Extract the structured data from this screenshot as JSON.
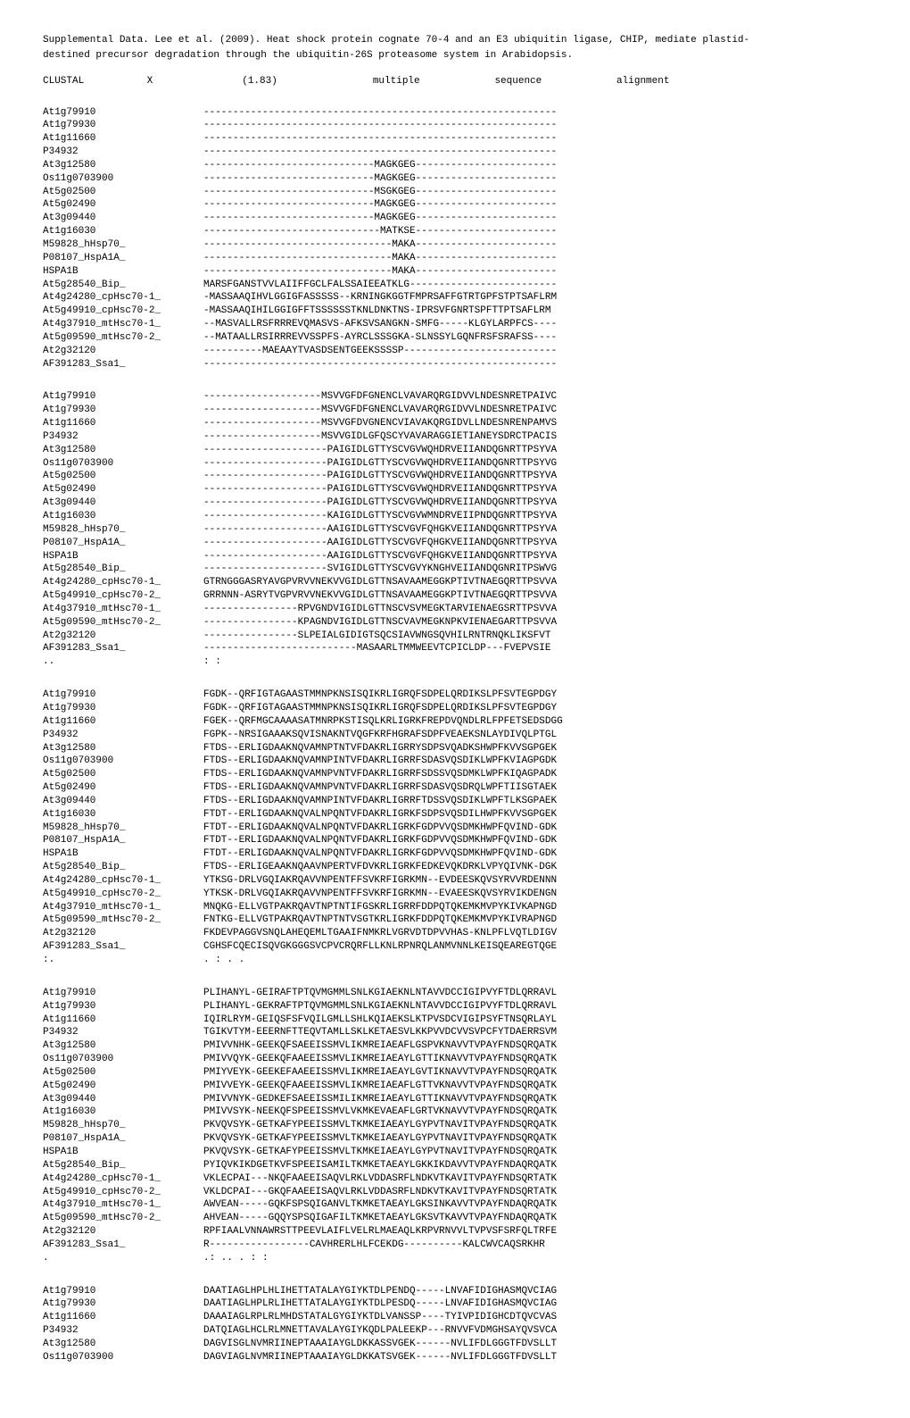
{
  "header": {
    "line1": "Supplemental Data. Lee et al. (2009). Heat shock protein cognate 70-4 and an E3 ubiquitin ligase, CHIP, mediate plastid-",
    "line2": "destined precursor degradation through the ubiquitin-26S proteasome system in Arabidopsis."
  },
  "clustal": {
    "c1": "CLUSTAL",
    "c2": "X",
    "c3": "(1.83)",
    "c4": "multiple",
    "c5": "sequence",
    "c6": "alignment"
  },
  "labels": [
    "At1g79910",
    "At1g79930",
    "At1g11660",
    "P34932",
    "At3g12580",
    "Os11g0703900",
    "At5g02500",
    "At5g02490",
    "At3g09440",
    "At1g16030",
    "M59828_hHsp70_",
    "P08107_HspA1A_",
    "HSPA1B",
    "At5g28540_Bip_",
    "At4g24280_cpHsc70-1_",
    "At5g49910_cpHsc70-2_",
    "At4g37910_mtHsc70-1_",
    "At5g09590_mtHsc70-2_",
    "At2g32120",
    "AF391283_Ssa1_"
  ],
  "block1": [
    "------------------------------------------------------------",
    "------------------------------------------------------------",
    "------------------------------------------------------------",
    "------------------------------------------------------------",
    "-----------------------------MAGKGEG------------------------",
    "-----------------------------MAGKGEG------------------------",
    "-----------------------------MSGKGEG------------------------",
    "-----------------------------MAGKGEG------------------------",
    "-----------------------------MAGKGEG------------------------",
    "------------------------------MATKSE------------------------",
    "--------------------------------MAKA------------------------",
    "--------------------------------MAKA------------------------",
    "--------------------------------MAKA------------------------",
    "MARSFGANSTVVLAIIFFGCLFALSSAIEEATKLG-------------------------",
    "-MASSAAQIHVLGGIGFASSSSS--KRNINGKGGTFMPRSAFFGTRTGPFSTPTSAFLRM",
    "-MASSAAQIHILGGIGFFTSSSSSSTKNLDNKTNS-IPRSVFGNRTSPFTTPTSAFLRM",
    "--MASVALLRSFRRREVQMASVS-AFKSVSANGKN-SMFG-----KLGYLARPFCS----",
    "--MATAALLRSIRRREVVSSPFS-AYRCLSSSGKA-SLNSSYLGQNFRSFSRAFSS----",
    "----------MAEAAYTVASDSENTGEEKSSSSP--------------------------",
    "------------------------------------------------------------"
  ],
  "block2": [
    "--------------------MSVVGFDFGNENCLVAVARQRGIDVVLNDESNRETPAIVC",
    "--------------------MSVVGFDFGNENCLVAVARQRGIDVVLNDESNRETPAIVC",
    "--------------------MSVVGFDVGNENCVIAVAKQRGIDVLLNDESNRENPAMVS",
    "--------------------MSVVGIDLGFQSCYVAVARAGGIETIANEYSDRCTPACIS",
    "---------------------PAIGIDLGTTYSCVGVWQHDRVEIIANDQGNRTTPSYVA",
    "---------------------PAIGIDLGTTYSCVGVWQHDRVEIIANDQGNRTTPSYVG",
    "---------------------PAIGIDLGTTYSCVGVWQHDRVEIIANDQGNRTTPSYVA",
    "---------------------PAIGIDLGTTYSCVGVWQHDRVEIIANDQGNRTTPSYVA",
    "---------------------PAIGIDLGTTYSCVGVWQHDRVEIIANDQGNRTTPSYVA",
    "---------------------KAIGIDLGTTYSCVGVWMNDRVEIIPNDQGNRTTPSYVA",
    "---------------------AAIGIDLGTTYSCVGVFQHGKVEIIANDQGNRTTPSYVA",
    "---------------------AAIGIDLGTTYSCVGVFQHGKVEIIANDQGNRTTPSYVA",
    "---------------------AAIGIDLGTTYSCVGVFQHGKVEIIANDQGNRTTPSYVA",
    "---------------------SVIGIDLGTTYSCVGVYKNGHVEIIANDQGNRITPSWVG",
    "GTRNGGGASRYAVGPVRVVNEKVVGIDLGTTNSAVAAMEGGKPTIVTNAEGQRTTPSVVA",
    "GRRNNN-ASRYTVGPVRVVNEKVVGIDLGTTNSAVAAMEGGKPTIVTNAEGQRTTPSVVA",
    "----------------RPVGNDVIGIDLGTTNSCVSVMEGKTARVIENAEGSRTTPSVVA",
    "----------------KPAGNDVIGIDLGTTNSCVAVMEGKNPKVIENAEGARTTPSVVA",
    "----------------SLPEIALGIDIGTSQCSIAVWNGSQVHILRNTRNQKLIKSFVT",
    "--------------------------MASAARLTMMWEEVTCPICLDP---FVEPVSIE"
  ],
  "block2_cons": {
    "label": "..",
    "seq": "                                                     :     :"
  },
  "block3": [
    "FGDK--QRFIGTAGAASTMMNPKNSISQIKRLIGRQFSDPELQRDIKSLPFSVTEGPDGY",
    "FGDK--QRFIGTAGAASTMMNPKNSISQIKRLIGRQFSDPELQRDIKSLPFSVTEGPDGY",
    "FGEK--QRFMGCAAAASATMNRPKSTISQLKRLIGRKFREPDVQNDLRLFPFETSEDSDGG",
    "FGPK--NRSIGAAAKSQVISNAKNTVQGFKRFHGRAFSDPFVEAEKSNLAYDIVQLPTGL",
    "FTDS--ERLIGDAAKNQVAMNPTNTVFDAKRLIGRRYSDPSVQADKSHWPFKVVSGPGEK",
    "FTDS--ERLIGDAAKNQVAMNPINTVFDAKRLIGRRFSDASVQSDIKLWPFKVIAGPGDK",
    "FTDS--ERLIGDAAKNQVAMNPVNTVFDAKRLIGRRFSDSSVQSDMKLWPFKIQAGPADK",
    "FTDS--ERLIGDAAKNQVAMNPVNTVFDAKRLIGRRFSDASVQSDRQLWPFTIISGTAEK",
    "FTDS--ERLIGDAAKNQVAMNPINTVFDAKRLIGRRFTDSSVQSDIKLWPFTLKSGPAEK",
    "FTDT--ERLIGDAAKNQVALNPQNTVFDAKRLIGRKFSDPSVQSDILHWPFKVVSGPGEK",
    "FTDT--ERLIGDAAKNQVALNPQNTVFDAKRLIGRKFGDPVVQSDMKHWPFQVIND-GDK",
    "FTDT--ERLIGDAAKNQVALNPQNTVFDAKRLIGRKFGDPVVQSDMKHWPFQVIND-GDK",
    "FTDT--ERLIGDAAKNQVALNPQNTVFDAKRLIGRKFGDPVVQSDMKHWPFQVIND-GDK",
    "FTDS--ERLIGEAAKNQAAVNPERTVFDVKRLIGRKFEDKEVQKDRKLVPYQIVNK-DGK",
    "YTKSG-DRLVGQIAKRQAVVNPENTFFSVKRFIGRKMN--EVDEESKQVSYRVVRDENNN",
    "YTKSK-DRLVGQIAKRQAVVNPENTFFSVKRFIGRKMN--EVAEESKQVSYRVIKDENGN",
    "MNQKG-ELLVGTPAKRQAVTNPTNTIFGSKRLIGRRFDDPQTQKEMKMVPYKIVKAPNGD",
    "FNTKG-ELLVGTPAKRQAVTNPTNTVSGTKRLIGRKFDDPQTQKEMKMVPYKIVRAPNGD",
    "FKDEVPAGGVSNQLAHEQEMLTGAAIFNMKRLVGRVDTDPVVHAS-KNLPFLVQTLDIGV",
    "CGHSFCQECISQVGKGGGSVCPVCRQRFLLKNLRPNRQLANMVNNLKEISQEAREGTQGE"
  ],
  "block3_cons": {
    "label": ":.",
    "seq": "                    .                :                 .    ."
  },
  "block4": [
    "PLIHANYL-GEIRAFTPTQVMGMMLSNLKGIAEKNLNTAVVDCCIGIPVYFTDLQRRAVL",
    "PLIHANYL-GEKRAFTPTQVMGMMLSNLKGIAEKNLNTAVVDCCIGIPVYFTDLQRRAVL",
    "IQIRLRYM-GEIQSFSFVQILGMLLSHLKQIAEKSLKTPVSDCVIGIPSYFTNSQRLAYL",
    "TGIKVTYM-EEERNFTTEQVTAMLLSKLKETAESVLKKPVVDCVVSVPCFYTDAERRSVM",
    "PMIVVNHK-GEEKQFSAEEISSMVLIKMREIAEAFLGSPVKNAVVTVPAYFNDSQRQATK",
    "PMIVVQYK-GEEKQFAAEEISSMVLIKMREIAEAYLGTTIKNAVVTVPAYFNDSQRQATK",
    "PMIYVEYK-GEEKEFAAEEISSMVLIKMREIAEAYLGVTIKNAVVTVPAYFNDSQRQATK",
    "PMIVVEYK-GEEKQFAAEEISSMVLIKMREIAEAFLGTTVKNAVVTVPAYFNDSQRQATK",
    "PMIVVNYK-GEDKEFSAEEISSMILIKMREIAEAYLGTTIKNAVVTVPAYFNDSQRQATK",
    "PMIVVSYK-NEEKQFSPEEISSMVLVKMKEVAEAFLGRTVKNAVVTVPAYFNDSQRQATK",
    "PKVQVSYK-GETKAFYPEEISSMVLTKMKEIAEAYLGYPVTNAVITVPAYFNDSQRQATK",
    "PKVQVSYK-GETKAFYPEEISSMVLTKMKEIAEAYLGYPVTNAVITVPAYFNDSQRQATK",
    "PKVQVSYK-GETKAFYPEEISSMVLTKMKEIAEAYLGYPVTNAVITVPAYFNDSQRQATK",
    "PYIQVKIKDGETKVFSPEEISAMILTKMKETAEAYLGKKIKDAVVTVPAYFNDAQRQATK",
    "VKLECPAI---NKQFAAEEISAQVLRKLVDDASRFLNDKVTKAVITVPAYFNDSQRTATK",
    "VKLDCPAI---GKQFAAEEISAQVLRKLVDDASRFLNDKVTKAVITVPAYFNDSQRTATK",
    "AWVEAN-----GQKFSPSQIGANVLTKMKETAEAYLGKSINKAVVTVPAYFNDAQRQATK",
    "AHVEAN-----GQQYSPSQIGAFILTKMKETAEAYLGKSVTKAVVTVPAYFNDAQRQATK",
    "RPFIAALVNNAWRSTTPEEVLAIFLVELRLMAEAQLKRPVRNVVLTVPVSFSRFQLTRFE",
    "R-----------------CAVHRERLHLFCEKDG----------KALCWVCAQSRKHR"
  ],
  "block4_cons": {
    "label": "  .",
    "seq": "               .:      ..                       .        :         :"
  },
  "block5_labels": [
    "At1g79910",
    "At1g79930",
    "At1g11660",
    "P34932",
    "At3g12580",
    "Os11g0703900"
  ],
  "block5": [
    "DAATIAGLHPLHLIHETTATALAYGIYKTDLPENDQ-----LNVAFIDIGHASMQVCIAG",
    "DAATIAGLHPLRLIHETTATALAYGIYKTDLPESDQ-----LNVAFIDIGHASMQVCIAG",
    "DAAAIAGLRPLRLMHDSTATALGYGIYKTDLVANSSP----TYIVPIDIGHCDTQVCVAS",
    "DATQIAGLHCLRLMNETTAVALAYGIYKQDLPALEEKP---RNVVFVDMGHSAYQVSVCA",
    "DAGVISGLNVMRIINEPTAAAIAYGLDKKASSVGEK------NVLIFDLGGGTFDVSLLT",
    "DAGVIAGLNVMRIINEPTAAAIAYGLDKKATSVGEK------NVLIFDLGGGTFDVSLLT"
  ]
}
